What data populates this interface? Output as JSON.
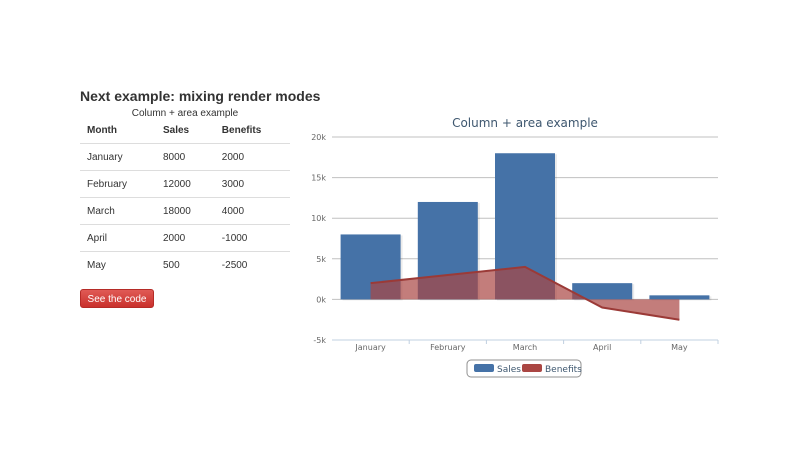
{
  "heading": "Next example: mixing render modes",
  "table": {
    "caption": "Column + area example",
    "headers": [
      "Month",
      "Sales",
      "Benefits"
    ],
    "rows": [
      [
        "January",
        "8000",
        "2000"
      ],
      [
        "February",
        "12000",
        "3000"
      ],
      [
        "March",
        "18000",
        "4000"
      ],
      [
        "April",
        "2000",
        "-1000"
      ],
      [
        "May",
        "500",
        "-2500"
      ]
    ]
  },
  "button": {
    "label": "See the code"
  },
  "chart_data": {
    "type": "bar",
    "title": "Column + area example",
    "categories": [
      "January",
      "February",
      "March",
      "April",
      "May"
    ],
    "series": [
      {
        "name": "Sales",
        "type": "column",
        "color": "#4572A7",
        "values": [
          8000,
          12000,
          18000,
          2000,
          500
        ]
      },
      {
        "name": "Benefits",
        "type": "area",
        "color": "#AA4643",
        "values": [
          2000,
          3000,
          4000,
          -1000,
          -2500
        ]
      }
    ],
    "ylim": [
      -5000,
      20000
    ],
    "yticks": [
      -5000,
      0,
      5000,
      10000,
      15000,
      20000
    ],
    "ytick_labels": [
      "-5k",
      "0k",
      "5k",
      "10k",
      "15k",
      "20k"
    ],
    "grid": true,
    "legend": "bottom-center"
  }
}
